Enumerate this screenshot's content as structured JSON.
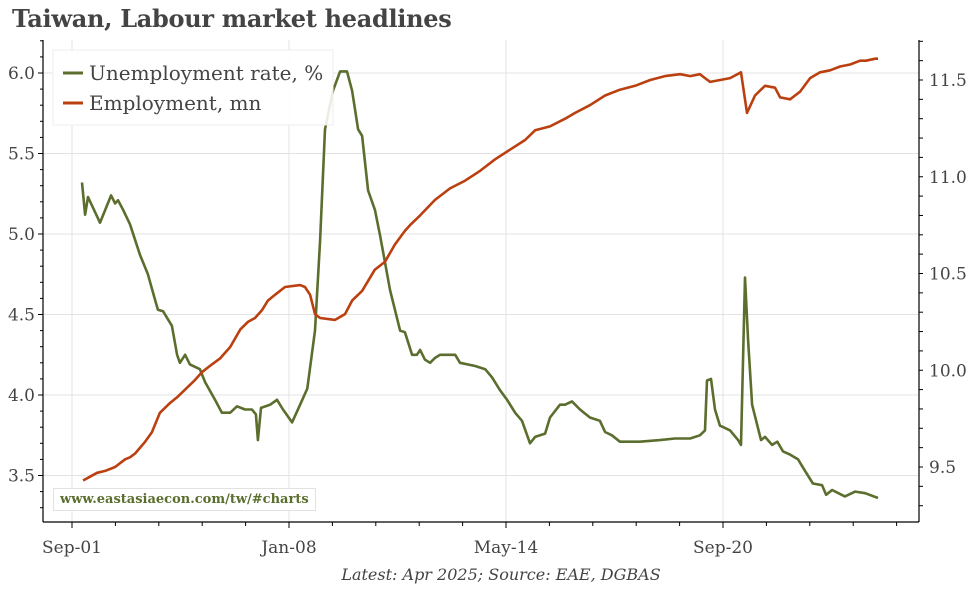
{
  "title": "Taiwan, Labour market headlines",
  "source": "Latest: Apr 2025; Source: EAE, DGBAS",
  "watermark": "www.eastasiaecon.com/tw/#charts",
  "colors": {
    "unemployment": "#5b6e2e",
    "employment": "#bb4010",
    "grid": "#e3e3e3",
    "axis": "#000000"
  },
  "legend": [
    {
      "label": "Unemployment rate, %",
      "color": "#5b6e2e"
    },
    {
      "label": "Employment, mn",
      "color": "#bb4010"
    }
  ],
  "chart_data": {
    "type": "line",
    "title": "Taiwan, Labour market headlines",
    "xlabel": "",
    "ylabel_left": "Unemployment rate, %",
    "ylabel_right": "Employment, mn",
    "x_ticks": [
      "Sep-01",
      "Jan-08",
      "May-14",
      "Sep-20"
    ],
    "y_left_ticks": [
      "3.5",
      "4.0",
      "4.5",
      "5.0",
      "5.5",
      "6.0"
    ],
    "y_right_ticks": [
      "9.5",
      "10.0",
      "10.5",
      "11.0",
      "11.5"
    ],
    "ylim_left": [
      3.21,
      6.2
    ],
    "ylim_right": [
      9.27,
      11.72
    ],
    "grid": true,
    "legend_position": "top-left",
    "x_unit": "months since Sep-2001",
    "series": [
      {
        "name": "Unemployment rate, %",
        "axis": "left",
        "points": [
          [
            3.5,
            5.32
          ],
          [
            4.6,
            5.12
          ],
          [
            5.6,
            5.23
          ],
          [
            9.8,
            5.07
          ],
          [
            13.7,
            5.24
          ],
          [
            15.1,
            5.19
          ],
          [
            16.1,
            5.21
          ],
          [
            17.9,
            5.15
          ],
          [
            20.3,
            5.06
          ],
          [
            23.8,
            4.87
          ],
          [
            26.6,
            4.75
          ],
          [
            29.1,
            4.59
          ],
          [
            30.1,
            4.53
          ],
          [
            31.9,
            4.52
          ],
          [
            35.0,
            4.43
          ],
          [
            36.8,
            4.25
          ],
          [
            37.8,
            4.2
          ],
          [
            39.6,
            4.25
          ],
          [
            41.3,
            4.19
          ],
          [
            44.8,
            4.16
          ],
          [
            46.6,
            4.08
          ],
          [
            50.1,
            3.97
          ],
          [
            52.5,
            3.89
          ],
          [
            55.4,
            3.89
          ],
          [
            57.8,
            3.93
          ],
          [
            60.6,
            3.91
          ],
          [
            63.0,
            3.91
          ],
          [
            64.4,
            3.88
          ],
          [
            65.1,
            3.72
          ],
          [
            66.2,
            3.92
          ],
          [
            69.4,
            3.94
          ],
          [
            71.8,
            3.97
          ],
          [
            73.9,
            3.91
          ],
          [
            77.1,
            3.83
          ],
          [
            79.9,
            3.94
          ],
          [
            82.4,
            4.04
          ],
          [
            85.1,
            4.4
          ],
          [
            86.9,
            4.96
          ],
          [
            88.6,
            5.65
          ],
          [
            91.4,
            5.89
          ],
          [
            93.9,
            6.01
          ],
          [
            96.3,
            6.01
          ],
          [
            98.1,
            5.89
          ],
          [
            100.2,
            5.65
          ],
          [
            101.6,
            5.61
          ],
          [
            103.7,
            5.27
          ],
          [
            106.1,
            5.15
          ],
          [
            107.9,
            4.99
          ],
          [
            111.4,
            4.65
          ],
          [
            114.9,
            4.4
          ],
          [
            116.6,
            4.39
          ],
          [
            119.1,
            4.25
          ],
          [
            120.8,
            4.25
          ],
          [
            121.9,
            4.28
          ],
          [
            123.6,
            4.22
          ],
          [
            125.4,
            4.2
          ],
          [
            127.1,
            4.23
          ],
          [
            128.9,
            4.25
          ],
          [
            134.2,
            4.25
          ],
          [
            135.9,
            4.2
          ],
          [
            141.2,
            4.18
          ],
          [
            144.7,
            4.16
          ],
          [
            147.1,
            4.11
          ],
          [
            149.9,
            4.03
          ],
          [
            152.4,
            3.97
          ],
          [
            155.2,
            3.89
          ],
          [
            157.6,
            3.84
          ],
          [
            160.4,
            3.7
          ],
          [
            162.2,
            3.74
          ],
          [
            165.7,
            3.76
          ],
          [
            167.4,
            3.86
          ],
          [
            170.9,
            3.94
          ],
          [
            172.7,
            3.94
          ],
          [
            175.1,
            3.96
          ],
          [
            177.9,
            3.91
          ],
          [
            181.4,
            3.86
          ],
          [
            184.9,
            3.84
          ],
          [
            186.7,
            3.77
          ],
          [
            189.1,
            3.75
          ],
          [
            191.9,
            3.71
          ],
          [
            198.9,
            3.71
          ],
          [
            205.9,
            3.72
          ],
          [
            211.2,
            3.73
          ],
          [
            214.7,
            3.73
          ],
          [
            216.5,
            3.73
          ],
          [
            219.9,
            3.75
          ],
          [
            221.7,
            3.78
          ],
          [
            222.4,
            4.09
          ],
          [
            223.8,
            4.1
          ],
          [
            225.2,
            3.91
          ],
          [
            226.9,
            3.81
          ],
          [
            230.5,
            3.78
          ],
          [
            233.3,
            3.72
          ],
          [
            234.3,
            3.69
          ],
          [
            235.7,
            4.73
          ],
          [
            236.8,
            4.34
          ],
          [
            238.2,
            3.94
          ],
          [
            241.3,
            3.72
          ],
          [
            242.7,
            3.74
          ],
          [
            245.2,
            3.69
          ],
          [
            247.0,
            3.71
          ],
          [
            249.0,
            3.65
          ],
          [
            251.5,
            3.63
          ],
          [
            254.3,
            3.6
          ],
          [
            256.7,
            3.53
          ],
          [
            259.5,
            3.45
          ],
          [
            262.7,
            3.44
          ],
          [
            264.1,
            3.38
          ],
          [
            266.2,
            3.41
          ],
          [
            270.7,
            3.37
          ],
          [
            274.3,
            3.4
          ],
          [
            277.8,
            3.39
          ],
          [
            282.3,
            3.36
          ]
        ]
      },
      {
        "name": "Employment, mn",
        "axis": "right",
        "points": [
          [
            3.9,
            9.43
          ],
          [
            6.3,
            9.45
          ],
          [
            8.8,
            9.47
          ],
          [
            11.6,
            9.48
          ],
          [
            15.1,
            9.5
          ],
          [
            18.6,
            9.54
          ],
          [
            20.3,
            9.55
          ],
          [
            22.1,
            9.57
          ],
          [
            25.6,
            9.63
          ],
          [
            28.0,
            9.68
          ],
          [
            30.8,
            9.78
          ],
          [
            34.3,
            9.83
          ],
          [
            36.8,
            9.86
          ],
          [
            39.6,
            9.9
          ],
          [
            43.1,
            9.95
          ],
          [
            45.5,
            9.99
          ],
          [
            49.0,
            10.03
          ],
          [
            51.8,
            10.06
          ],
          [
            55.4,
            10.12
          ],
          [
            58.9,
            10.21
          ],
          [
            61.6,
            10.25
          ],
          [
            64.1,
            10.27
          ],
          [
            66.5,
            10.31
          ],
          [
            68.6,
            10.36
          ],
          [
            71.1,
            10.39
          ],
          [
            74.6,
            10.43
          ],
          [
            79.9,
            10.44
          ],
          [
            81.6,
            10.43
          ],
          [
            83.4,
            10.39
          ],
          [
            85.1,
            10.29
          ],
          [
            86.9,
            10.27
          ],
          [
            92.1,
            10.26
          ],
          [
            95.6,
            10.29
          ],
          [
            98.1,
            10.36
          ],
          [
            101.6,
            10.41
          ],
          [
            106.1,
            10.52
          ],
          [
            109.6,
            10.56
          ],
          [
            113.1,
            10.65
          ],
          [
            116.6,
            10.72
          ],
          [
            118.4,
            10.75
          ],
          [
            121.9,
            10.8
          ],
          [
            127.1,
            10.88
          ],
          [
            132.4,
            10.94
          ],
          [
            137.7,
            10.98
          ],
          [
            142.9,
            11.03
          ],
          [
            148.2,
            11.09
          ],
          [
            153.4,
            11.14
          ],
          [
            158.7,
            11.19
          ],
          [
            162.2,
            11.24
          ],
          [
            167.4,
            11.26
          ],
          [
            172.7,
            11.3
          ],
          [
            176.2,
            11.33
          ],
          [
            181.4,
            11.37
          ],
          [
            186.7,
            11.42
          ],
          [
            191.9,
            11.45
          ],
          [
            197.2,
            11.47
          ],
          [
            202.5,
            11.5
          ],
          [
            207.7,
            11.52
          ],
          [
            213.0,
            11.53
          ],
          [
            216.5,
            11.52
          ],
          [
            219.9,
            11.53
          ],
          [
            221.7,
            11.51
          ],
          [
            223.5,
            11.49
          ],
          [
            227.0,
            11.5
          ],
          [
            230.5,
            11.51
          ],
          [
            234.3,
            11.54
          ],
          [
            236.4,
            11.33
          ],
          [
            239.2,
            11.42
          ],
          [
            242.7,
            11.47
          ],
          [
            246.2,
            11.46
          ],
          [
            248.0,
            11.41
          ],
          [
            251.5,
            11.4
          ],
          [
            255.0,
            11.44
          ],
          [
            258.5,
            11.51
          ],
          [
            262.0,
            11.54
          ],
          [
            265.5,
            11.55
          ],
          [
            269.0,
            11.57
          ],
          [
            272.5,
            11.58
          ],
          [
            276.0,
            11.6
          ],
          [
            278.1,
            11.6
          ],
          [
            281.3,
            11.61
          ],
          [
            282.3,
            11.61
          ]
        ]
      }
    ]
  }
}
